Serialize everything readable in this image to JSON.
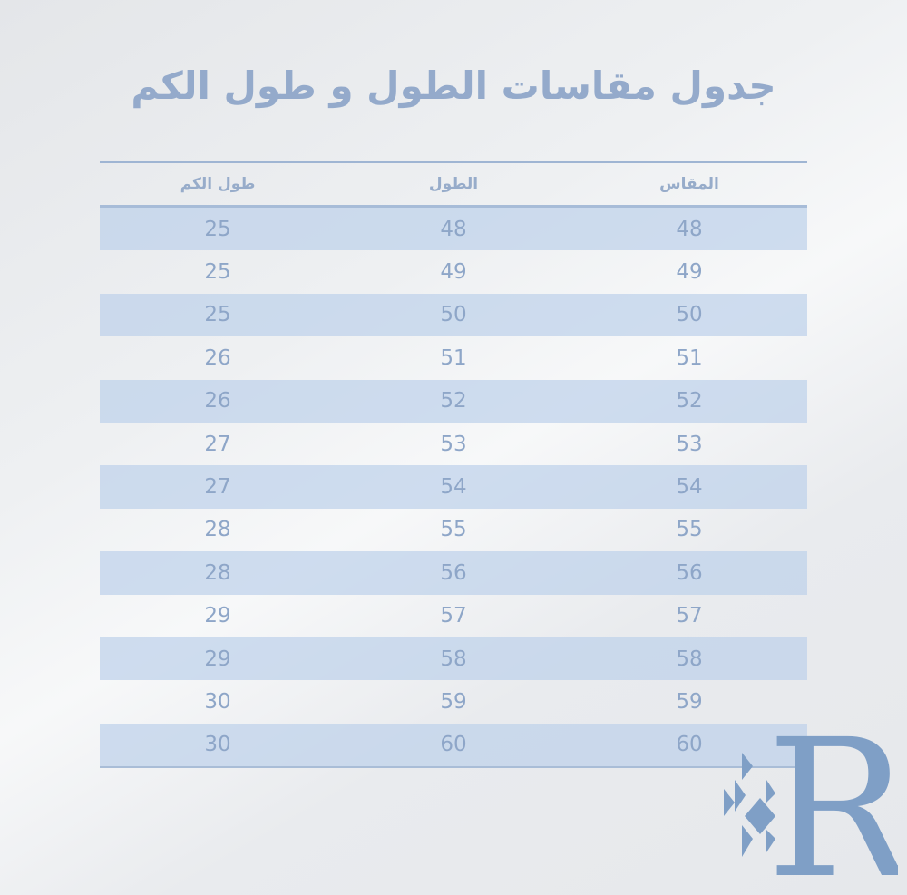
{
  "title": "جدول مقاسات الطول و طول الكم",
  "table": {
    "headers": [
      "المقاس",
      "الطول",
      "طول الكم"
    ],
    "rows": [
      [
        "48",
        "48",
        "25"
      ],
      [
        "49",
        "49",
        "25"
      ],
      [
        "50",
        "50",
        "25"
      ],
      [
        "51",
        "51",
        "26"
      ],
      [
        "52",
        "52",
        "26"
      ],
      [
        "53",
        "53",
        "27"
      ],
      [
        "54",
        "54",
        "27"
      ],
      [
        "55",
        "55",
        "28"
      ],
      [
        "56",
        "56",
        "28"
      ],
      [
        "57",
        "57",
        "29"
      ],
      [
        "58",
        "58",
        "29"
      ],
      [
        "59",
        "59",
        "30"
      ],
      [
        "60",
        "60",
        "30"
      ]
    ]
  },
  "logo": {
    "letter": "R",
    "color": "#7f9fc6"
  },
  "colors": {
    "text": "#8ea6c8",
    "row_shade": "#c4d5ea",
    "rule": "#9fb5d3"
  }
}
